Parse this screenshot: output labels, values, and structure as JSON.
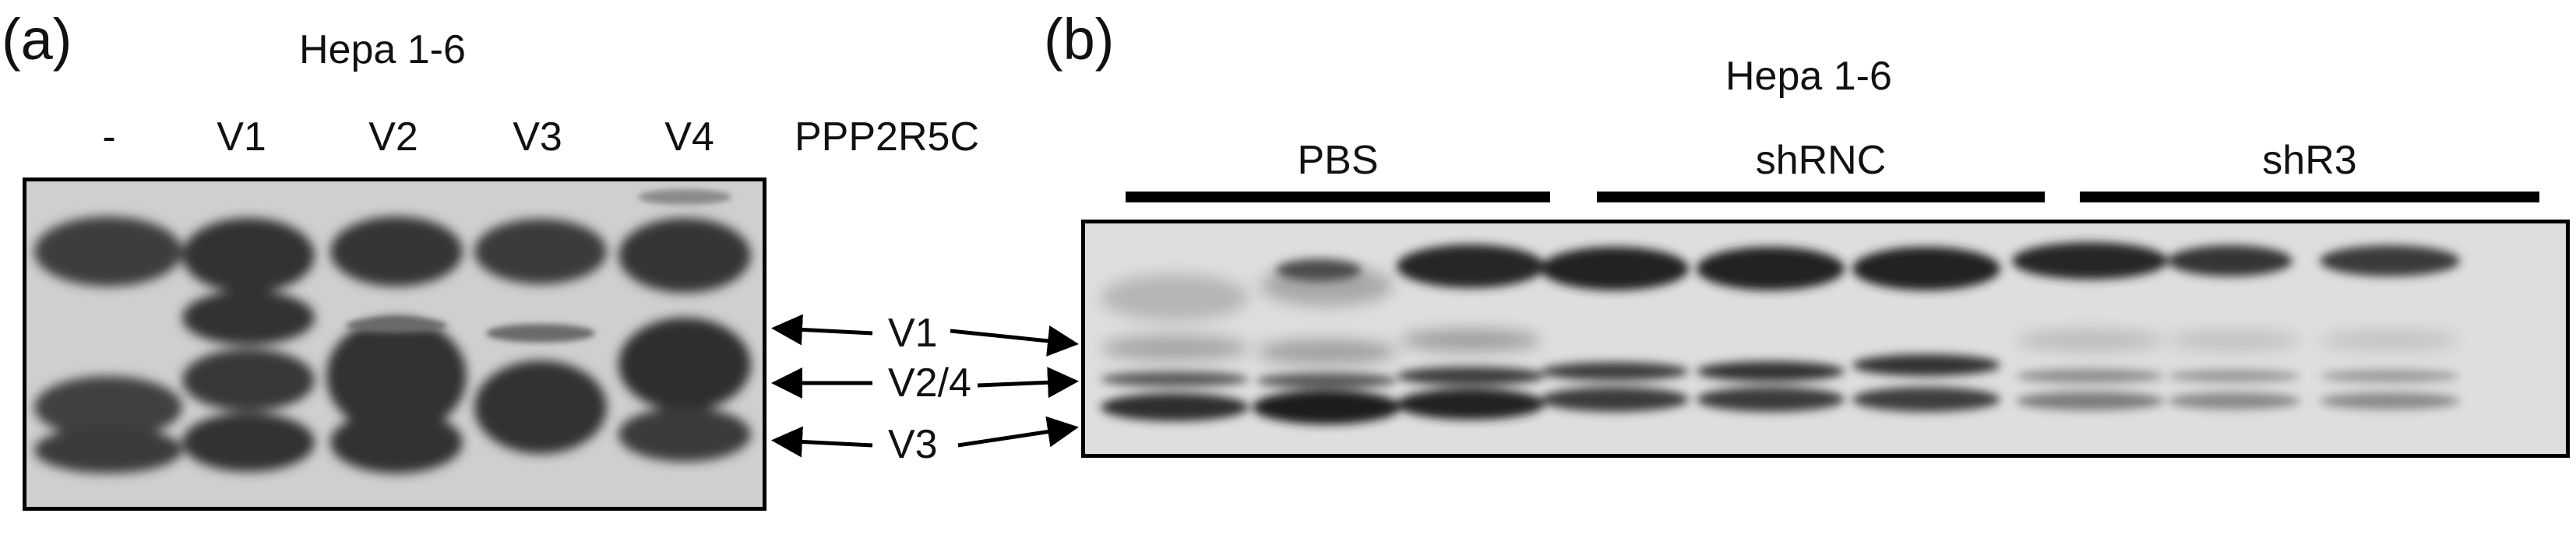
{
  "panel_a": {
    "letter": "(a)",
    "cell_line": "Hepa 1-6",
    "lanes": [
      "-",
      "V1",
      "V2",
      "V3",
      "V4"
    ],
    "target_label": "PPP2R5C",
    "bands": [
      "V1",
      "V2/4",
      "V3"
    ]
  },
  "panel_b": {
    "letter": "(b)",
    "cell_line": "Hepa 1-6",
    "groups": [
      "PBS",
      "shRNC",
      "shR3"
    ]
  }
}
